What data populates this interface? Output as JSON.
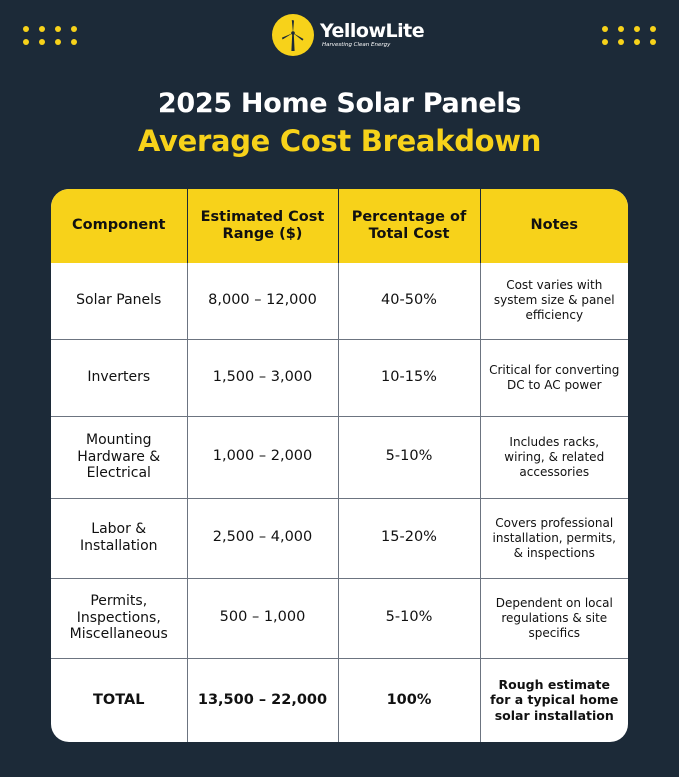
{
  "brand": {
    "name": "YellowLite",
    "tagline": "Harvesting Clean Energy",
    "accent": "#f7d21a",
    "background": "#1c2a38"
  },
  "title": {
    "line1": "2025 Home Solar Panels",
    "line2": "Average Cost Breakdown"
  },
  "table": {
    "headers": [
      "Component",
      "Estimated Cost Range ($)",
      "Percentage of Total Cost",
      "Notes"
    ],
    "rows": [
      {
        "component": "Solar Panels",
        "cost": "8,000 – 12,000",
        "pct": "40-50%",
        "notes": "Cost varies with system size & panel efficiency"
      },
      {
        "component": "Inverters",
        "cost": "1,500 – 3,000",
        "pct": "10-15%",
        "notes": "Critical for converting DC to AC power"
      },
      {
        "component": "Mounting Hardware & Electrical",
        "cost": "1,000 – 2,000",
        "pct": "5-10%",
        "notes": "Includes racks, wiring, & related accessories"
      },
      {
        "component": "Labor & Installation",
        "cost": "2,500 – 4,000",
        "pct": "15-20%",
        "notes": "Covers professional installation, permits, & inspections"
      },
      {
        "component": "Permits, Inspections, Miscellaneous",
        "cost": "500 – 1,000",
        "pct": "5-10%",
        "notes": "Dependent on local regulations & site specifics"
      },
      {
        "component": "TOTAL",
        "cost": "13,500 – 22,000",
        "pct": "100%",
        "notes": "Rough estimate for a typical home solar installation"
      }
    ]
  }
}
